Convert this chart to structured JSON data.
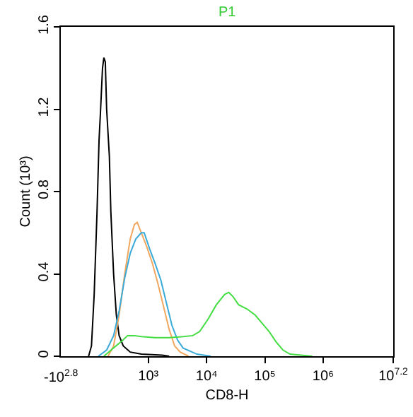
{
  "chart_data": {
    "type": "line",
    "title": "P1",
    "xlabel": "CD8-H",
    "ylabel": "Count (10³)",
    "log": "x",
    "annotations": [
      "-10$^{2.8}$"
    ],
    "xlim": [
      31.6,
      15850000
    ],
    "xticks": [
      {
        "value": 1000,
        "label": "10³"
      },
      {
        "value": 10000,
        "label": "10⁴"
      },
      {
        "value": 100000,
        "label": "10⁵"
      },
      {
        "value": 1000000,
        "label": "10⁶"
      },
      {
        "value": 15850000,
        "label": "10$^{7.2}$"
      }
    ],
    "ylim": [
      0,
      1.6
    ],
    "yticks": [
      0,
      0.4,
      0.8,
      1.2,
      1.6
    ],
    "grid": false,
    "marker": "none",
    "line_style": "solid",
    "series": [
      {
        "color": "#000000",
        "x": [
          94.6,
          106,
          118,
          132,
          143,
          151,
          164,
          173,
          183,
          193,
          215,
          228,
          254,
          283,
          316,
          372,
          490,
          760,
          1730,
          2280
        ],
        "values": [
          0,
          0.05,
          0.3,
          0.7,
          1.05,
          1.18,
          1.4,
          1.45,
          1.43,
          1.2,
          0.97,
          0.7,
          0.4,
          0.2,
          0.1,
          0.05,
          0.02,
          0.01,
          0.005,
          0
        ]
      },
      {
        "color": "#f0a860",
        "x": [
          204,
          254,
          316,
          394,
          490,
          578,
          646,
          760,
          946,
          1180,
          1470,
          1830,
          2280,
          2830,
          3530,
          4900
        ],
        "values": [
          0,
          0.05,
          0.2,
          0.4,
          0.57,
          0.64,
          0.65,
          0.6,
          0.53,
          0.45,
          0.35,
          0.24,
          0.13,
          0.05,
          0.02,
          0
        ]
      },
      {
        "color": "#3aaad8",
        "x": [
          139,
          193,
          254,
          316,
          394,
          490,
          611,
          760,
          849,
          1060,
          1310,
          1640,
          2040,
          2540,
          3160,
          3940,
          6810,
          11800
        ],
        "values": [
          0,
          0.03,
          0.1,
          0.22,
          0.38,
          0.5,
          0.57,
          0.6,
          0.6,
          0.52,
          0.45,
          0.37,
          0.26,
          0.15,
          0.08,
          0.04,
          0.01,
          0
        ]
      },
      {
        "color": "#44dd44",
        "x": [
          173,
          254,
          372,
          440,
          578,
          760,
          1310,
          2280,
          3940,
          5780,
          7600,
          10600,
          14700,
          20400,
          24000,
          28300,
          35300,
          49000,
          68100,
          89500,
          118000,
          155000,
          204000,
          269000,
          416000,
          646000
        ],
        "values": [
          0,
          0.04,
          0.08,
          0.1,
          0.1,
          0.095,
          0.09,
          0.09,
          0.095,
          0.1,
          0.12,
          0.18,
          0.25,
          0.3,
          0.31,
          0.29,
          0.25,
          0.23,
          0.2,
          0.16,
          0.12,
          0.07,
          0.03,
          0.01,
          0.005,
          0
        ]
      }
    ]
  }
}
